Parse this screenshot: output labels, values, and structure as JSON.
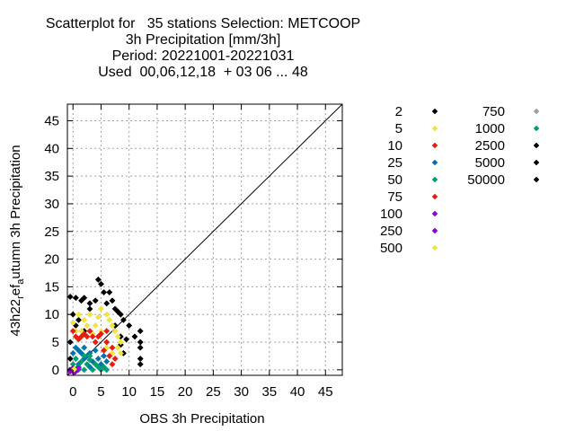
{
  "chart_data": {
    "type": "scatter",
    "title_lines": [
      "Scatterplot for   35 stations Selection: METCOOP",
      "3h Precipitation [mm/3h]",
      "Period: 20221001-20221031",
      "Used  00,06,12,18  + 03 06 ... 48"
    ],
    "xlabel": "OBS 3h Precipitation",
    "ylabel_main": "43h22",
    "ylabel_sub1": "r",
    "ylabel_mid": "ef",
    "ylabel_sub2": "a",
    "ylabel_tail": "utumn 3h Precipitation",
    "xlim": [
      -1,
      48
    ],
    "ylim": [
      -1,
      48
    ],
    "x_ticks": [
      "0",
      "5",
      "10",
      "15",
      "20",
      "25",
      "30",
      "35",
      "40",
      "45"
    ],
    "y_ticks": [
      "0",
      "5",
      "10",
      "15",
      "20",
      "25",
      "30",
      "35",
      "40",
      "45"
    ],
    "grid": true,
    "diagonal": true,
    "legend_placement": "right",
    "legend": [
      {
        "label": "2",
        "color": "#000000"
      },
      {
        "label": "5",
        "color": "#f0e442"
      },
      {
        "label": "10",
        "color": "#e51e10"
      },
      {
        "label": "25",
        "color": "#0072b2"
      },
      {
        "label": "50",
        "color": "#009e73"
      },
      {
        "label": "75",
        "color": "#e51e10"
      },
      {
        "label": "100",
        "color": "#9400d3"
      },
      {
        "label": "250",
        "color": "#9400d3"
      },
      {
        "label": "500",
        "color": "#f0e442"
      },
      {
        "label": "750",
        "color": "#a0a0a0"
      },
      {
        "label": "1000",
        "color": "#009e73"
      },
      {
        "label": "2500",
        "color": "#000000"
      },
      {
        "label": "5000",
        "color": "#000000"
      },
      {
        "label": "50000",
        "color": "#000000"
      }
    ],
    "series": [
      {
        "color": "#000000",
        "points": [
          [
            -0.5,
            13.2
          ],
          [
            0.5,
            13
          ],
          [
            1.5,
            12.5
          ],
          [
            2,
            13
          ],
          [
            3,
            12
          ],
          [
            4,
            12.5
          ],
          [
            4.5,
            16.3
          ],
          [
            5,
            15.5
          ],
          [
            5.5,
            14
          ],
          [
            6.5,
            14
          ],
          [
            7,
            12.5
          ],
          [
            7.5,
            11
          ],
          [
            8,
            10.5
          ],
          [
            8.5,
            10
          ],
          [
            9,
            9
          ],
          [
            10,
            8
          ],
          [
            12,
            7
          ],
          [
            12,
            5
          ],
          [
            12,
            4
          ],
          [
            12,
            2
          ],
          [
            12,
            1
          ],
          [
            9,
            3
          ],
          [
            8.5,
            4.5
          ],
          [
            8.5,
            6
          ],
          [
            9.5,
            5.5
          ],
          [
            0,
            10
          ],
          [
            0.5,
            8
          ],
          [
            1,
            9
          ],
          [
            2,
            7
          ],
          [
            -0.5,
            5
          ],
          [
            -0.5,
            2
          ],
          [
            6,
            12
          ],
          [
            3,
            11
          ],
          [
            7.5,
            8
          ],
          [
            -0.5,
            0
          ],
          [
            11,
            6
          ]
        ]
      },
      {
        "color": "#f0e442",
        "points": [
          [
            0,
            8.5
          ],
          [
            1,
            10
          ],
          [
            2,
            9
          ],
          [
            3,
            10
          ],
          [
            4,
            8
          ],
          [
            5,
            11
          ],
          [
            6,
            10
          ],
          [
            6.5,
            9
          ],
          [
            7,
            8
          ],
          [
            7.5,
            7
          ],
          [
            8,
            6
          ],
          [
            8.5,
            5
          ],
          [
            8,
            4
          ],
          [
            8.5,
            3
          ],
          [
            7,
            3
          ],
          [
            6,
            4
          ],
          [
            5,
            7
          ],
          [
            1.5,
            7
          ],
          [
            3.5,
            6.5
          ],
          [
            4.5,
            9.5
          ],
          [
            0.5,
            7
          ],
          [
            2.5,
            8
          ]
        ]
      },
      {
        "color": "#e51e10",
        "points": [
          [
            0,
            7
          ],
          [
            0.5,
            6
          ],
          [
            1,
            5.5
          ],
          [
            1.5,
            6
          ],
          [
            2,
            6.5
          ],
          [
            2.5,
            6
          ],
          [
            3,
            7
          ],
          [
            3.5,
            6
          ],
          [
            4,
            5
          ],
          [
            4.5,
            6
          ],
          [
            5,
            6.5
          ],
          [
            6,
            5
          ],
          [
            7,
            4
          ],
          [
            7.5,
            2
          ],
          [
            7,
            1
          ],
          [
            6.5,
            2.5
          ],
          [
            5.5,
            3.5
          ],
          [
            6,
            7
          ]
        ]
      },
      {
        "color": "#0072b2",
        "points": [
          [
            0,
            3
          ],
          [
            0.5,
            4
          ],
          [
            1,
            3.5
          ],
          [
            1.5,
            3
          ],
          [
            2,
            4
          ],
          [
            2.5,
            2.5
          ],
          [
            3,
            3
          ],
          [
            3.5,
            1.5
          ],
          [
            4,
            3.5
          ],
          [
            4.5,
            2
          ],
          [
            5,
            1
          ],
          [
            5.5,
            2.5
          ],
          [
            6,
            1.5
          ],
          [
            1,
            1
          ],
          [
            2,
            2
          ],
          [
            3,
            0.5
          ]
        ]
      },
      {
        "color": "#009e73",
        "points": [
          [
            0,
            1
          ],
          [
            0.5,
            2
          ],
          [
            1,
            0.5
          ],
          [
            1.5,
            1.5
          ],
          [
            2,
            0
          ],
          [
            2.5,
            1
          ],
          [
            3,
            1.8
          ],
          [
            3.5,
            0
          ],
          [
            4,
            1
          ],
          [
            4.5,
            0.5
          ],
          [
            5,
            0
          ],
          [
            0,
            0
          ],
          [
            1,
            0
          ],
          [
            2,
            2.5
          ],
          [
            3,
            2.5
          ],
          [
            5.5,
            0.5
          ],
          [
            6,
            0
          ]
        ]
      },
      {
        "color": "#9400d3",
        "points": [
          [
            -0.5,
            -0.3
          ],
          [
            0,
            0.3
          ],
          [
            0.5,
            -0.3
          ],
          [
            1,
            0.3
          ],
          [
            0.2,
            -0.5
          ]
        ]
      },
      {
        "color": "#f0e442",
        "points": [
          [
            0.2,
            0.1
          ]
        ]
      }
    ]
  }
}
